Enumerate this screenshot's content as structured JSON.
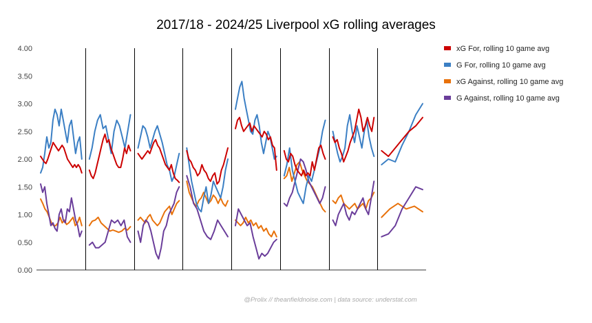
{
  "chart_data": {
    "type": "line",
    "title": "2017/18 - 2024/25 Liverpool xG rolling averages",
    "xlabel": "",
    "ylabel": "",
    "ylim": [
      0,
      4
    ],
    "y_ticks": [
      "0.00",
      "0.50",
      "1.00",
      "1.50",
      "2.00",
      "2.50",
      "3.00",
      "3.50",
      "4.00"
    ],
    "grid": false,
    "season_dividers": true,
    "legend_position": "right",
    "footer": "@Prolix // theanfieldnoise.com | data source: understat.com",
    "seasons": 8,
    "series": [
      {
        "name": "xG For, rolling 10 game avg",
        "color": "#cc0000",
        "seasons": [
          [
            2.05,
            2.0,
            1.95,
            1.92,
            2.0,
            2.1,
            2.2,
            2.3,
            2.25,
            2.2,
            2.15,
            2.2,
            2.25,
            2.2,
            2.1,
            2.0,
            1.95,
            1.9,
            1.85,
            1.9,
            1.85,
            1.9,
            1.85,
            1.75
          ],
          [
            1.8,
            1.7,
            1.65,
            1.75,
            1.9,
            2.05,
            2.2,
            2.35,
            2.45,
            2.3,
            2.35,
            2.2,
            2.1,
            2.0,
            1.9,
            1.85,
            1.85,
            2.0,
            2.2,
            2.1,
            2.25,
            2.15
          ],
          [
            2.1,
            2.05,
            2.0,
            2.05,
            2.1,
            2.15,
            2.1,
            2.2,
            2.3,
            2.35,
            2.25,
            2.2,
            2.1,
            2.0,
            1.9,
            1.85,
            1.8,
            1.9,
            1.75,
            1.65,
            1.62,
            1.58
          ],
          [
            2.15,
            2.0,
            1.95,
            1.85,
            1.8,
            1.7,
            1.75,
            1.9,
            1.8,
            1.75,
            1.65,
            1.6,
            1.7,
            1.75,
            1.55,
            1.6,
            1.8,
            1.9,
            2.05,
            2.2
          ],
          [
            2.55,
            2.7,
            2.75,
            2.6,
            2.5,
            2.55,
            2.6,
            2.65,
            2.5,
            2.6,
            2.55,
            2.5,
            2.45,
            2.4,
            2.5,
            2.45,
            2.35,
            2.4,
            2.25,
            2.2,
            1.8
          ],
          [
            2.15,
            2.0,
            1.95,
            2.1,
            2.05,
            1.9,
            1.8,
            1.75,
            1.7,
            1.8,
            1.7,
            1.75,
            1.7,
            1.95,
            1.8,
            2.0,
            2.2,
            2.25,
            2.1,
            2.0
          ],
          [
            2.4,
            2.3,
            2.35,
            2.2,
            2.1,
            1.95,
            2.05,
            2.15,
            2.3,
            2.4,
            2.5,
            2.7,
            2.9,
            2.75,
            2.5,
            2.6,
            2.75,
            2.6,
            2.5,
            2.75
          ],
          [
            2.15,
            2.05,
            2.2,
            2.35,
            2.5,
            2.6,
            2.75
          ]
        ]
      },
      {
        "name": "G For, rolling 10 game avg",
        "color": "#3b7fc4",
        "seasons": [
          [
            1.75,
            1.85,
            2.1,
            2.4,
            2.2,
            2.3,
            2.7,
            2.9,
            2.8,
            2.6,
            2.9,
            2.7,
            2.5,
            2.3,
            2.6,
            2.7,
            2.4,
            2.1,
            2.3,
            2.4,
            2.0
          ],
          [
            2.0,
            2.2,
            2.5,
            2.7,
            2.8,
            2.55,
            2.6,
            2.35,
            2.1,
            2.5,
            2.7,
            2.6,
            2.4,
            2.2,
            2.5,
            2.8
          ],
          [
            2.2,
            2.4,
            2.6,
            2.55,
            2.4,
            2.2,
            2.35,
            2.5,
            2.6,
            2.45,
            2.3,
            2.1,
            1.9,
            1.8,
            1.6,
            1.7,
            1.9,
            2.1
          ],
          [
            2.2,
            1.9,
            1.6,
            1.4,
            1.2,
            1.1,
            1.05,
            1.3,
            1.5,
            1.2,
            1.35,
            1.6,
            1.5,
            1.4,
            1.3,
            1.5,
            1.8,
            2.0
          ],
          [
            2.9,
            3.1,
            3.3,
            3.4,
            3.1,
            2.9,
            2.7,
            2.5,
            2.45,
            2.7,
            2.8,
            2.6,
            2.3,
            2.1,
            2.3,
            2.5,
            2.4,
            2.2,
            2.0,
            2.05
          ],
          [
            1.7,
            1.9,
            2.2,
            1.8,
            1.6,
            1.4,
            1.3,
            1.2,
            1.5,
            1.7,
            1.6,
            1.8,
            2.0,
            2.2,
            2.5,
            2.7
          ],
          [
            2.5,
            2.3,
            2.1,
            1.95,
            2.05,
            2.2,
            2.6,
            2.8,
            2.5,
            2.3,
            2.6,
            2.4,
            2.2,
            2.5,
            2.7,
            2.4,
            2.2,
            2.05
          ],
          [
            1.9,
            2.0,
            1.95,
            2.25,
            2.5,
            2.8,
            3.0
          ]
        ]
      },
      {
        "name": "xG Against, rolling 10 game avg",
        "color": "#e8710a",
        "seasons": [
          [
            1.28,
            1.2,
            1.1,
            1.05,
            0.95,
            0.85,
            0.8,
            0.8,
            0.85,
            0.95,
            0.85,
            0.9,
            0.82,
            0.85,
            0.9,
            0.95,
            0.8,
            0.85,
            0.95,
            0.8
          ],
          [
            0.8,
            0.88,
            0.9,
            0.95,
            0.85,
            0.8,
            0.75,
            0.7,
            0.72,
            0.7,
            0.68,
            0.7,
            0.75,
            0.72,
            0.78
          ],
          [
            0.9,
            0.95,
            0.9,
            0.85,
            0.95,
            1.0,
            0.9,
            0.85,
            0.8,
            0.85,
            0.95,
            1.05,
            1.1,
            1.15,
            1.0,
            1.1,
            1.2,
            1.25
          ],
          [
            1.6,
            1.4,
            1.3,
            1.2,
            1.15,
            1.25,
            1.3,
            1.4,
            1.3,
            1.2,
            1.25,
            1.35,
            1.3,
            1.2,
            1.3,
            1.2,
            1.15,
            1.25
          ],
          [
            0.9,
            0.85,
            0.8,
            0.85,
            0.95,
            0.85,
            0.9,
            0.8,
            0.85,
            0.75,
            0.8,
            0.7,
            0.75,
            0.65,
            0.6,
            0.7,
            0.6
          ],
          [
            1.65,
            1.7,
            1.85,
            1.6,
            1.75,
            1.9,
            1.95,
            1.8,
            1.7,
            1.6,
            1.55,
            1.5,
            1.4,
            1.3,
            1.2,
            1.1,
            1.05
          ],
          [
            1.25,
            1.2,
            1.3,
            1.35,
            1.2,
            1.15,
            1.1,
            1.15,
            1.2,
            1.1,
            1.15,
            1.2,
            1.1,
            1.25,
            1.3,
            1.4
          ],
          [
            0.95,
            1.1,
            1.2,
            1.1,
            1.15,
            1.05
          ]
        ]
      },
      {
        "name": "G Against, rolling 10 game avg",
        "color": "#6a3d9a",
        "seasons": [
          [
            1.55,
            1.4,
            1.5,
            1.2,
            1.0,
            0.8,
            0.85,
            0.75,
            0.7,
            1.0,
            1.1,
            0.9,
            0.85,
            1.1,
            1.05,
            1.3,
            1.1,
            0.9,
            0.8,
            0.6,
            0.7
          ],
          [
            0.45,
            0.5,
            0.4,
            0.4,
            0.45,
            0.5,
            0.7,
            0.9,
            0.85,
            0.9,
            0.8,
            0.9,
            0.6,
            0.5
          ],
          [
            0.7,
            0.5,
            0.8,
            0.9,
            0.85,
            0.7,
            0.5,
            0.3,
            0.2,
            0.4,
            0.7,
            0.8,
            1.0,
            1.1,
            1.2,
            1.4,
            1.5
          ],
          [
            1.7,
            1.5,
            1.2,
            1.1,
            0.9,
            0.7,
            0.6,
            0.55,
            0.7,
            0.9,
            0.8,
            0.7,
            0.6
          ],
          [
            0.8,
            1.1,
            1.0,
            0.9,
            0.8,
            0.85,
            0.6,
            0.4,
            0.2,
            0.3,
            0.25,
            0.3,
            0.4,
            0.5,
            0.55
          ],
          [
            1.2,
            1.15,
            1.3,
            1.4,
            1.6,
            1.8,
            2.0,
            1.95,
            1.8,
            1.6,
            1.5,
            1.4,
            1.3,
            1.2,
            1.3,
            1.5
          ],
          [
            0.9,
            0.8,
            1.0,
            1.1,
            1.2,
            1.0,
            0.9,
            1.05,
            1.0,
            1.1,
            1.2,
            1.3,
            1.1,
            1.0,
            1.3,
            1.6
          ],
          [
            0.6,
            0.65,
            0.8,
            1.1,
            1.3,
            1.5,
            1.45
          ]
        ]
      }
    ]
  }
}
